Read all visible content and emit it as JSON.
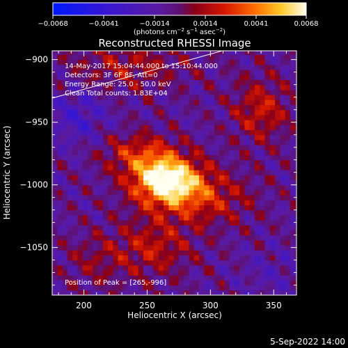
{
  "colorbar": {
    "ticks": [
      "−0.0068",
      "−0.0041",
      "−0.0014",
      "0.0014",
      "0.0041",
      "0.0068"
    ],
    "units_text": "(photons cm",
    "units_exp1": "−2",
    "units_mid": " s",
    "units_exp2": "−1",
    "units_mid2": " asec",
    "units_exp3": "−2",
    "units_close": ")"
  },
  "chart_data": {
    "type": "heatmap",
    "title": "Reconstructed RHESSI Image",
    "xlabel": "Heliocentric X (arcsec)",
    "ylabel": "Heliocentric Y (arcsec)",
    "xlim": [
      175,
      368
    ],
    "ylim": [
      -1088,
      -893
    ],
    "xticks": [
      200,
      250,
      300,
      350
    ],
    "yticks": [
      -900,
      -950,
      -1000,
      -1050
    ],
    "xtick_labels": [
      "200",
      "250",
      "300",
      "350"
    ],
    "ytick_labels": [
      "−900",
      "−950",
      "−1000",
      "−1050"
    ],
    "zlim": [
      -0.0068,
      0.0068
    ],
    "colormap": "rhessi-diverging-blue-purple-red-yellow",
    "peak": [
      265,
      -996
    ],
    "annotations": [
      "14-May-2017 15:04:44.000 to 15:10:44.000",
      "Detectors: 3F 6F 8F, Att=0",
      "Energy Range: 25.0 - 50.0 keV",
      "Clean   Total counts: 1.83E+04"
    ],
    "peak_label": "Position of Peak = [265,-996]"
  },
  "footer": {
    "date": "5-Sep-2022 14:00"
  }
}
